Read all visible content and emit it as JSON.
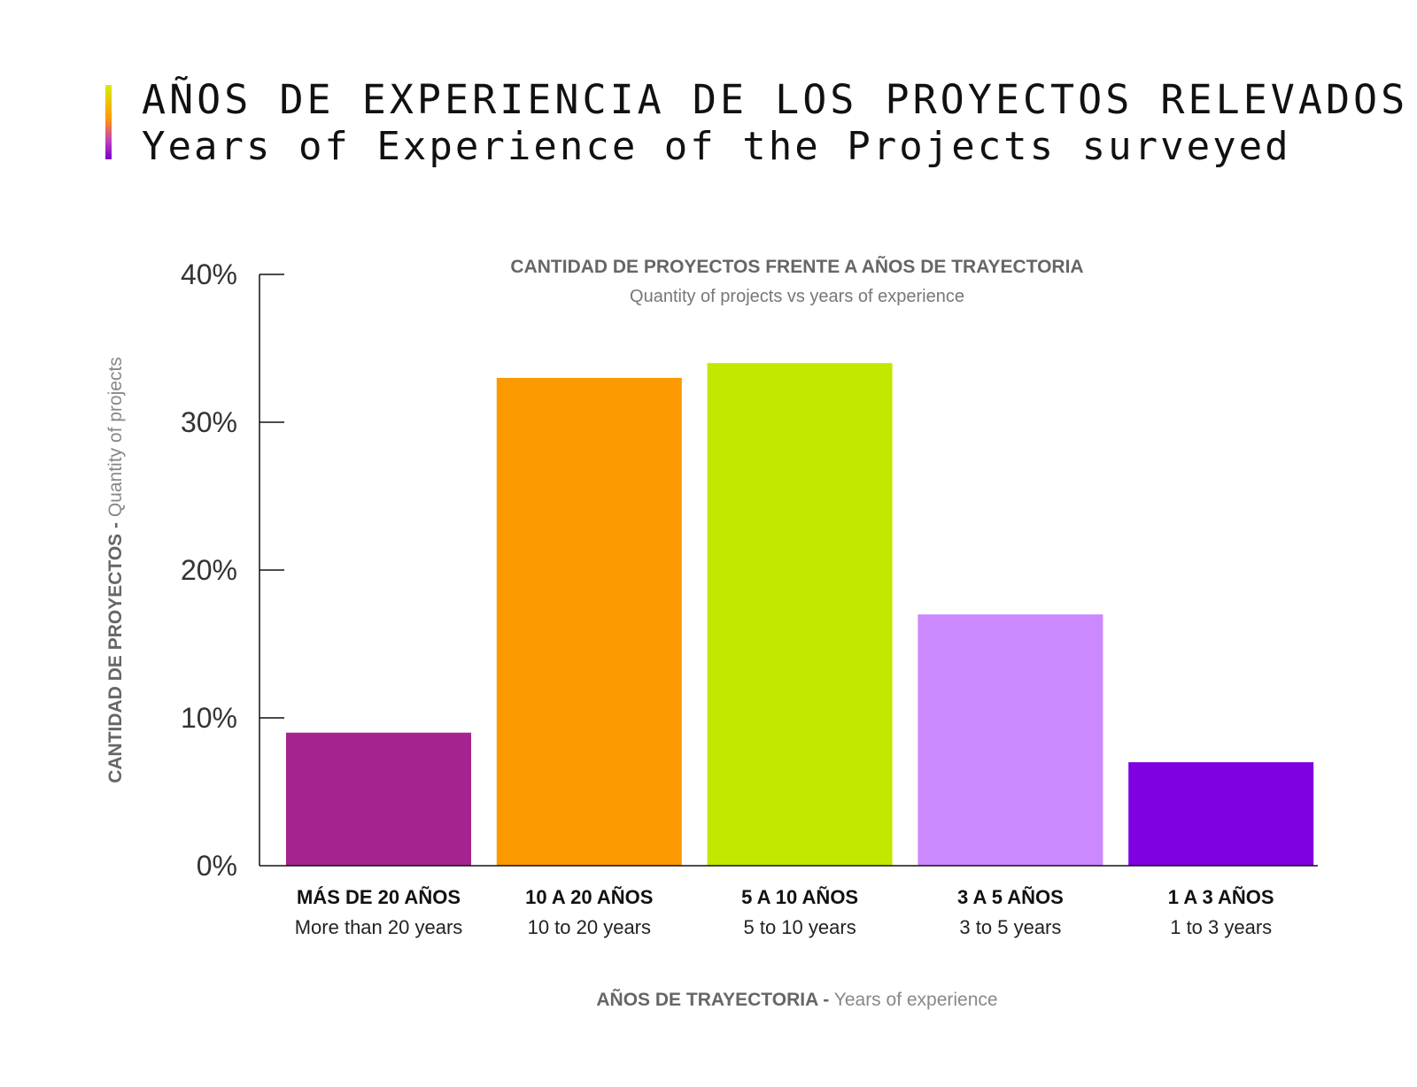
{
  "header": {
    "title_es": "AÑOS DE EXPERIENCIA DE LOS PROYECTOS RELEVADOS",
    "title_en": "Years of Experience of the Projects surveyed",
    "gradient_colors": [
      "#d4ee00",
      "#ff9900",
      "#c040c0",
      "#7a00cc"
    ]
  },
  "chart_data": {
    "type": "bar",
    "title": "CANTIDAD DE PROYECTOS FRENTE A AÑOS DE TRAYECTORIA",
    "subtitle": "Quantity of projects vs years of experience",
    "categories": [
      "MÁS DE 20 AÑOS",
      "10 A 20 AÑOS",
      "5 A 10 AÑOS",
      "3 A 5 AÑOS",
      "1 A 3 AÑOS"
    ],
    "categories_en": [
      "More than 20 years",
      "10 to 20 years",
      "5 to 10 years",
      "3 to 5 years",
      "1 to 3 years"
    ],
    "values": [
      9,
      33,
      34,
      17,
      7
    ],
    "colors": [
      "#a5238f",
      "#fa9900",
      "#c3e800",
      "#cc88ff",
      "#7f00e0"
    ],
    "ylim": [
      0,
      40
    ],
    "yticks": [
      "0%",
      "10%",
      "20%",
      "30%",
      "40%"
    ],
    "ytick_values": [
      0,
      10,
      20,
      30,
      40
    ],
    "xlabel_bold": "AÑOS DE TRAYECTORIA -",
    "xlabel_light": " Years of experience",
    "ylabel_bold": "CANTIDAD DE PROYECTOS -",
    "ylabel_light": " Quantity of projects"
  }
}
